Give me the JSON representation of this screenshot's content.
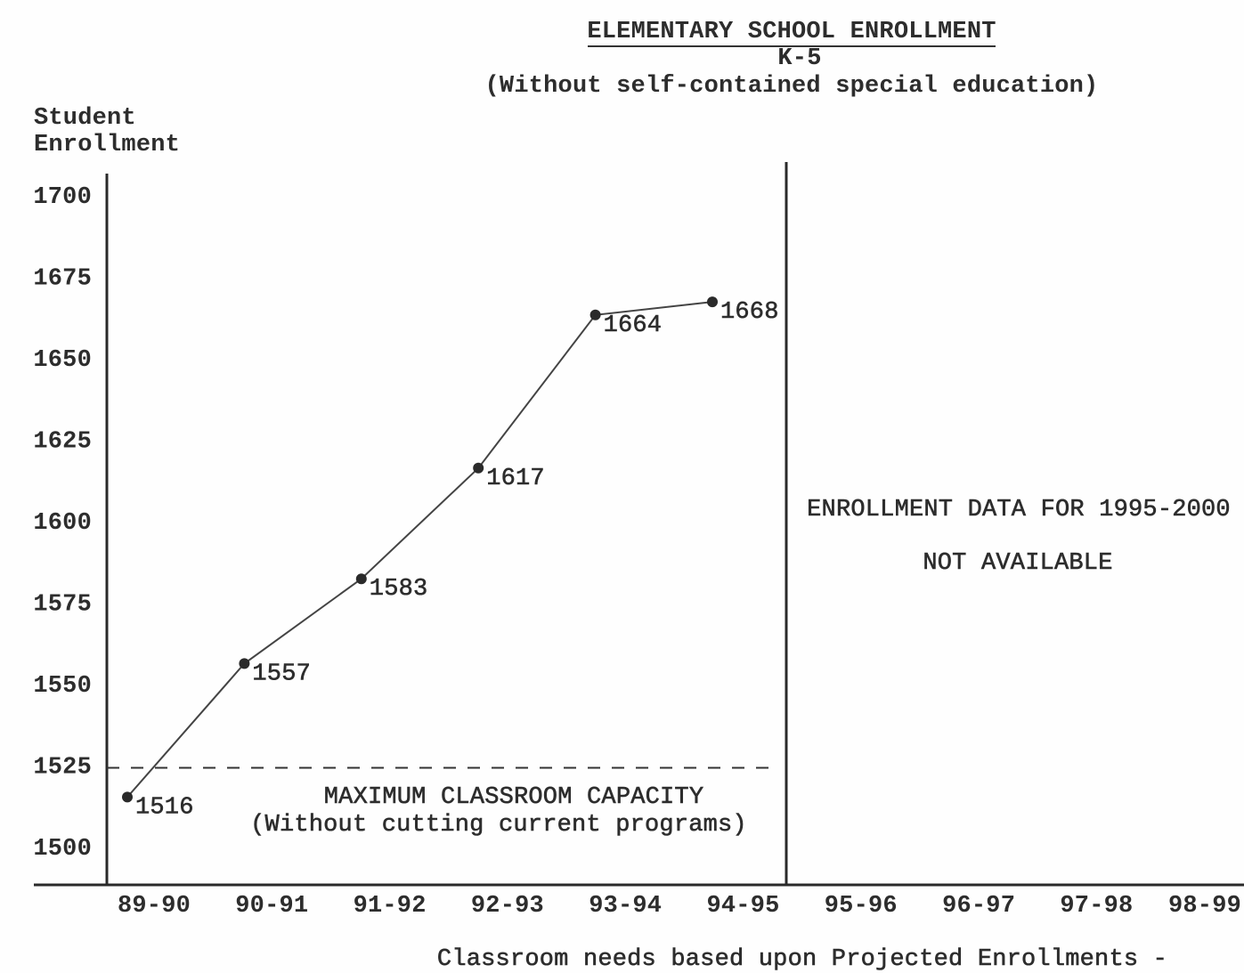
{
  "chart_data": {
    "type": "line",
    "title": "ELEMENTARY SCHOOL ENROLLMENT",
    "subtitle": "K-5",
    "subtitle_note": "(Without self-contained special education)",
    "ylabel": [
      "Student",
      "Enrollment"
    ],
    "xlabel": "Classroom needs based upon Projected Enrollments -",
    "categories": [
      "89-90",
      "90-91",
      "91-92",
      "92-93",
      "93-94",
      "94-95",
      "95-96",
      "96-97",
      "97-98",
      "98-99"
    ],
    "yticks": [
      1500,
      1525,
      1550,
      1575,
      1600,
      1625,
      1650,
      1675,
      1700
    ],
    "ylim": [
      1500,
      1700
    ],
    "series": [
      {
        "values": [
          1516,
          1557,
          1583,
          1617,
          1664,
          1668,
          null,
          null,
          null,
          null
        ]
      }
    ],
    "reference_lines": [
      {
        "y": 1525,
        "style": "dashed",
        "label": [
          "MAXIMUM CLASSROOM CAPACITY",
          "(Without cutting current programs)"
        ]
      }
    ],
    "annotation": [
      "ENROLLMENT DATA FOR 1995-2000",
      "NOT AVAILABLE"
    ],
    "grid": false,
    "legend": "none",
    "colors": {
      "ink": "#2d2d2d",
      "background": "#ffffff"
    }
  }
}
